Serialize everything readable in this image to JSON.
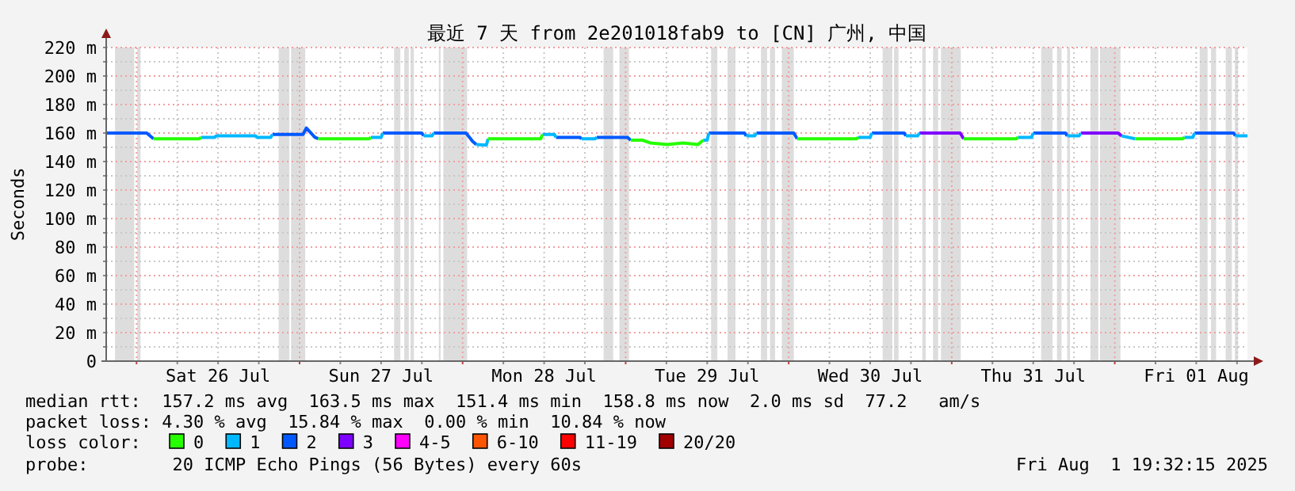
{
  "chart_data": {
    "type": "line",
    "title": "最近 7 天 from 2e201018fab9 to [CN] 广州, 中国",
    "ylabel": "Seconds",
    "legend_title": "loss color:",
    "legend": "bottom",
    "grid": true,
    "line_style": "solid",
    "marker": "none",
    "xlim": [
      "2025-07-25T19:32",
      "2025-08-01T19:32"
    ],
    "xticks": [
      {
        "value": "2025-07-26T00:00",
        "label": null
      },
      {
        "value": "2025-07-26T06:00",
        "label": null
      },
      {
        "value": "2025-07-26T12:00",
        "label": "Sat 26 Jul"
      },
      {
        "value": "2025-07-26T18:00",
        "label": null
      },
      {
        "value": "2025-07-27T00:00",
        "label": null
      },
      {
        "value": "2025-07-27T06:00",
        "label": null
      },
      {
        "value": "2025-07-27T12:00",
        "label": "Sun 27 Jul"
      },
      {
        "value": "2025-07-27T18:00",
        "label": null
      },
      {
        "value": "2025-07-28T00:00",
        "label": null
      },
      {
        "value": "2025-07-28T06:00",
        "label": null
      },
      {
        "value": "2025-07-28T12:00",
        "label": "Mon 28 Jul"
      },
      {
        "value": "2025-07-28T18:00",
        "label": null
      },
      {
        "value": "2025-07-29T00:00",
        "label": null
      },
      {
        "value": "2025-07-29T06:00",
        "label": null
      },
      {
        "value": "2025-07-29T12:00",
        "label": "Tue 29 Jul"
      },
      {
        "value": "2025-07-29T18:00",
        "label": null
      },
      {
        "value": "2025-07-30T00:00",
        "label": null
      },
      {
        "value": "2025-07-30T06:00",
        "label": null
      },
      {
        "value": "2025-07-30T12:00",
        "label": "Wed 30 Jul"
      },
      {
        "value": "2025-07-30T18:00",
        "label": null
      },
      {
        "value": "2025-07-31T00:00",
        "label": null
      },
      {
        "value": "2025-07-31T06:00",
        "label": null
      },
      {
        "value": "2025-07-31T12:00",
        "label": "Thu 31 Jul"
      },
      {
        "value": "2025-07-31T18:00",
        "label": null
      },
      {
        "value": "2025-08-01T00:00",
        "label": null
      },
      {
        "value": "2025-08-01T06:00",
        "label": null
      },
      {
        "value": "2025-08-01T12:00",
        "label": "Fri 01 Aug"
      },
      {
        "value": "2025-08-01T18:00",
        "label": null
      }
    ],
    "ylim": [
      0,
      220
    ],
    "yticks": [
      0,
      {
        "value": 10,
        "label": null
      },
      {
        "value": 20,
        "label": "20 m"
      },
      {
        "value": 30,
        "label": null
      },
      {
        "value": 40,
        "label": "40 m"
      },
      {
        "value": 50,
        "label": null
      },
      {
        "value": 60,
        "label": "60 m"
      },
      {
        "value": 70,
        "label": null
      },
      {
        "value": 80,
        "label": "80 m"
      },
      {
        "value": 90,
        "label": null
      },
      {
        "value": 100,
        "label": "100 m"
      },
      {
        "value": 110,
        "label": null
      },
      {
        "value": 120,
        "label": "120 m"
      },
      {
        "value": 130,
        "label": null
      },
      {
        "value": 140,
        "label": "140 m"
      },
      {
        "value": 150,
        "label": null
      },
      {
        "value": 160,
        "label": "160 m"
      },
      {
        "value": 170,
        "label": null
      },
      {
        "value": 180,
        "label": "180 m"
      },
      {
        "value": 190,
        "label": null
      },
      {
        "value": 200,
        "label": "200 m"
      },
      {
        "value": 210,
        "label": null
      },
      {
        "value": 220,
        "label": "220 m"
      }
    ],
    "bands": [
      {
        "axis": "x",
        "from": "2025-07-25T20:50",
        "to": "2025-07-25T23:40",
        "color": "#dddddd"
      },
      {
        "axis": "x",
        "from": "2025-07-26T00:05",
        "to": "2025-07-26T00:35",
        "color": "#dddddd"
      },
      {
        "axis": "x",
        "from": "2025-07-26T20:55",
        "to": "2025-07-26T22:30",
        "color": "#dddddd"
      },
      {
        "axis": "x",
        "from": "2025-07-26T22:45",
        "to": "2025-07-27T00:50",
        "color": "#dddddd"
      },
      {
        "axis": "x",
        "from": "2025-07-27T13:55",
        "to": "2025-07-27T14:50",
        "color": "#dddddd"
      },
      {
        "axis": "x",
        "from": "2025-07-27T15:25",
        "to": "2025-07-27T16:05",
        "color": "#dddddd"
      },
      {
        "axis": "x",
        "from": "2025-07-27T16:20",
        "to": "2025-07-27T16:50",
        "color": "#dddddd"
      },
      {
        "axis": "x",
        "from": "2025-07-27T20:30",
        "to": "2025-07-27T20:45",
        "color": "#dddddd"
      },
      {
        "axis": "x",
        "from": "2025-07-27T21:10",
        "to": "2025-07-28T00:40",
        "color": "#dddddd"
      },
      {
        "axis": "x",
        "from": "2025-07-28T20:45",
        "to": "2025-07-28T22:10",
        "color": "#dddddd"
      },
      {
        "axis": "x",
        "from": "2025-07-28T23:05",
        "to": "2025-07-29T00:30",
        "color": "#dddddd"
      },
      {
        "axis": "x",
        "from": "2025-07-29T12:35",
        "to": "2025-07-29T13:30",
        "color": "#dddddd"
      },
      {
        "axis": "x",
        "from": "2025-07-29T15:00",
        "to": "2025-07-29T16:10",
        "color": "#dddddd"
      },
      {
        "axis": "x",
        "from": "2025-07-29T19:55",
        "to": "2025-07-29T20:50",
        "color": "#dddddd"
      },
      {
        "axis": "x",
        "from": "2025-07-29T21:15",
        "to": "2025-07-29T22:00",
        "color": "#dddddd"
      },
      {
        "axis": "x",
        "from": "2025-07-29T23:00",
        "to": "2025-07-30T00:45",
        "color": "#dddddd"
      },
      {
        "axis": "x",
        "from": "2025-07-30T13:50",
        "to": "2025-07-30T15:15",
        "color": "#dddddd"
      },
      {
        "axis": "x",
        "from": "2025-07-30T15:30",
        "to": "2025-07-30T16:10",
        "color": "#dddddd"
      },
      {
        "axis": "x",
        "from": "2025-07-30T19:40",
        "to": "2025-07-30T20:10",
        "color": "#dddddd"
      },
      {
        "axis": "x",
        "from": "2025-07-30T21:15",
        "to": "2025-07-30T22:00",
        "color": "#dddddd"
      },
      {
        "axis": "x",
        "from": "2025-07-30T22:25",
        "to": "2025-07-31T01:20",
        "color": "#dddddd"
      },
      {
        "axis": "x",
        "from": "2025-07-31T13:10",
        "to": "2025-07-31T14:50",
        "color": "#dddddd"
      },
      {
        "axis": "x",
        "from": "2025-07-31T15:30",
        "to": "2025-07-31T16:10",
        "color": "#dddddd"
      },
      {
        "axis": "x",
        "from": "2025-07-31T17:00",
        "to": "2025-07-31T17:25",
        "color": "#dddddd"
      },
      {
        "axis": "x",
        "from": "2025-07-31T20:25",
        "to": "2025-07-31T21:35",
        "color": "#dddddd"
      },
      {
        "axis": "x",
        "from": "2025-07-31T21:50",
        "to": "2025-08-01T00:50",
        "color": "#dddddd"
      },
      {
        "axis": "x",
        "from": "2025-08-01T12:30",
        "to": "2025-08-01T13:40",
        "color": "#dddddd"
      },
      {
        "axis": "x",
        "from": "2025-08-01T14:10",
        "to": "2025-08-01T14:55",
        "color": "#dddddd"
      },
      {
        "axis": "x",
        "from": "2025-08-01T16:20",
        "to": "2025-08-01T17:15",
        "color": "#dddddd"
      },
      {
        "axis": "x",
        "from": "2025-08-01T17:40",
        "to": "2025-08-01T18:10",
        "color": "#dddddd"
      }
    ],
    "series": [
      {
        "name": "0",
        "color": "#26ff00",
        "x": [
          "2025-07-26T02:30",
          "2025-07-26T09:15",
          "2025-07-26T09:30",
          null,
          "2025-07-27T02:45",
          "2025-07-27T10:15",
          "2025-07-27T10:30",
          null,
          "2025-07-28T03:45",
          "2025-07-28T11:30",
          "2025-07-28T11:45",
          null,
          "2025-07-29T00:45",
          "2025-07-29T02:30",
          "2025-07-29T03:40",
          "2025-07-29T06:05",
          "2025-07-29T08:25",
          "2025-07-29T10:40",
          "2025-07-29T11:25",
          null,
          "2025-07-30T01:15",
          "2025-07-30T10:00",
          "2025-07-30T10:15",
          null,
          "2025-07-31T01:45",
          "2025-07-31T09:30",
          "2025-07-31T09:45",
          null,
          "2025-08-01T03:00",
          "2025-08-01T10:00",
          "2025-08-01T10:15"
        ],
        "values": [
          156,
          156,
          157,
          null,
          156,
          156,
          157,
          null,
          156,
          156,
          159,
          null,
          155,
          155,
          153,
          152,
          153,
          152,
          155,
          null,
          156,
          156,
          157,
          null,
          156,
          156,
          157,
          null,
          156,
          156,
          157
        ]
      },
      {
        "name": "1",
        "color": "#00b8ff",
        "x": [
          "2025-07-26T09:30",
          "2025-07-26T11:30",
          "2025-07-26T11:45",
          "2025-07-26T17:30",
          "2025-07-26T17:45",
          "2025-07-26T19:45",
          "2025-07-26T20:00",
          null,
          "2025-07-27T10:30",
          "2025-07-27T12:00",
          "2025-07-27T12:15",
          null,
          "2025-07-27T18:15",
          "2025-07-27T19:30",
          "2025-07-27T19:45",
          null,
          "2025-07-28T02:00",
          "2025-07-28T03:30",
          "2025-07-28T03:45",
          null,
          "2025-07-28T11:45",
          "2025-07-28T13:30",
          "2025-07-28T13:45",
          null,
          "2025-07-28T17:30",
          "2025-07-28T19:30",
          "2025-07-28T19:45",
          null,
          "2025-07-29T11:25",
          "2025-07-29T12:00",
          "2025-07-29T12:15",
          null,
          "2025-07-29T17:45",
          "2025-07-29T19:00",
          "2025-07-29T19:15",
          null,
          "2025-07-30T10:15",
          "2025-07-30T12:00",
          "2025-07-30T12:15",
          null,
          "2025-07-30T17:15",
          "2025-07-30T19:00",
          "2025-07-30T19:15",
          null,
          "2025-07-31T09:45",
          "2025-07-31T11:45",
          "2025-07-31T12:00",
          null,
          "2025-07-31T17:00",
          "2025-07-31T18:45",
          "2025-07-31T19:00",
          null,
          "2025-08-01T01:00",
          "2025-08-01T03:00",
          null,
          "2025-08-01T10:15",
          "2025-08-01T11:30",
          "2025-08-01T11:45",
          null,
          "2025-08-01T17:45",
          "2025-08-01T19:32"
        ],
        "values": [
          157,
          157,
          158,
          158,
          157,
          157,
          159,
          null,
          157,
          157,
          160,
          null,
          158,
          158,
          160,
          null,
          152,
          151.5,
          156,
          null,
          159,
          159,
          157,
          null,
          156,
          156,
          157,
          null,
          155,
          155,
          160,
          null,
          158,
          158,
          160,
          null,
          157,
          157,
          160,
          null,
          158,
          158,
          160,
          null,
          157,
          157,
          160,
          null,
          158,
          158,
          160,
          null,
          158,
          156,
          null,
          157,
          157,
          160,
          null,
          158,
          158
        ]
      },
      {
        "name": "2",
        "color": "#0059ff",
        "x": [
          "2025-07-25T19:32",
          "2025-07-26T01:30",
          "2025-07-26T02:30",
          null,
          "2025-07-26T20:00",
          "2025-07-27T00:30",
          "2025-07-27T01:00",
          "2025-07-27T02:15",
          "2025-07-27T02:45",
          null,
          "2025-07-27T12:15",
          "2025-07-27T18:00",
          "2025-07-27T18:15",
          null,
          "2025-07-27T19:45",
          "2025-07-28T00:30",
          "2025-07-28T01:30",
          "2025-07-28T02:00",
          null,
          "2025-07-28T13:45",
          "2025-07-28T17:15",
          "2025-07-28T17:30",
          null,
          "2025-07-28T19:45",
          "2025-07-29T00:15",
          "2025-07-29T00:45",
          null,
          "2025-07-29T12:15",
          "2025-07-29T17:30",
          "2025-07-29T17:45",
          null,
          "2025-07-29T19:15",
          "2025-07-30T00:45",
          "2025-07-30T01:15",
          null,
          "2025-07-30T12:15",
          "2025-07-30T17:00",
          "2025-07-30T17:15",
          null,
          "2025-07-31T12:00",
          "2025-07-31T16:45",
          "2025-07-31T17:00",
          null,
          "2025-08-01T11:45",
          "2025-08-01T17:30",
          "2025-08-01T17:45"
        ],
        "values": [
          160,
          160,
          156,
          null,
          159,
          159,
          163.5,
          157,
          156,
          null,
          160,
          160,
          158,
          null,
          160,
          160,
          154,
          152,
          null,
          157,
          157,
          156,
          null,
          157,
          157,
          155,
          null,
          160,
          160,
          158,
          null,
          160,
          160,
          156,
          null,
          160,
          160,
          158,
          null,
          160,
          160,
          158,
          null,
          160,
          160,
          158
        ]
      },
      {
        "name": "3",
        "color": "#7e00ff",
        "x": [
          "2025-07-30T19:15",
          "2025-07-31T01:15",
          "2025-07-31T01:45",
          null,
          "2025-07-31T19:00",
          "2025-08-01T00:30",
          "2025-08-01T01:00"
        ],
        "values": [
          160,
          160,
          156,
          null,
          160,
          160,
          158
        ]
      },
      {
        "name": "4-5",
        "color": "#ff00ff"
      },
      {
        "name": "6-10",
        "color": "#ff5500"
      },
      {
        "name": "11-19",
        "color": "#ff0000"
      },
      {
        "name": "20/20",
        "color": "#a10000"
      }
    ],
    "annotations": [
      "median rtt:  157.2 ms avg  163.5 ms max  151.4 ms min  158.8 ms now  2.0 ms sd  77.2   am/s",
      "packet loss: 4.30 % avg  15.84 % max  0.00 % min  10.84 % now",
      "probe:        20 ICMP Echo Pings (56 Bytes) every 60s",
      "Fri Aug  1 19:32:15 2025"
    ]
  }
}
